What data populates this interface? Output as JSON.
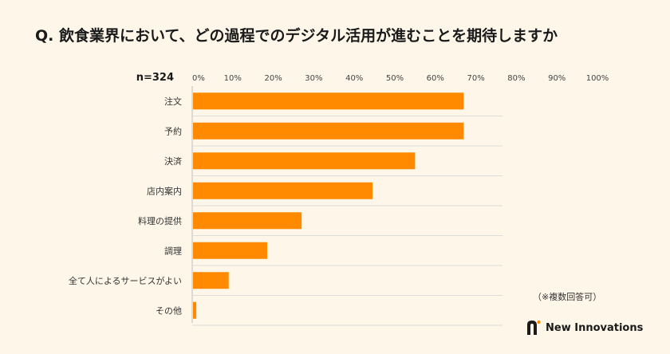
{
  "title": "Q. 飲食業界において、どの過程でのデジタル活用が進むことを期待しますか",
  "note": "（※複数回答可）",
  "brand": {
    "name": "New Innovations"
  },
  "colors": {
    "bar": "#FF8A00",
    "background": "#FDF6E9",
    "grid": "#D9D9D9"
  },
  "chart_data": {
    "type": "bar",
    "orientation": "horizontal",
    "sample_label": "n=324",
    "categories": [
      "注文",
      "予約",
      "決済",
      "店内案内",
      "料理の提供",
      "調理",
      "全て人によるサービスがよい",
      "その他"
    ],
    "values": [
      67.0,
      67.0,
      55.0,
      44.5,
      27.0,
      18.5,
      9.0,
      1.0
    ],
    "x_ticks": [
      "0%",
      "10%",
      "20%",
      "30%",
      "40%",
      "50%",
      "60%",
      "70%",
      "80%",
      "90%",
      "100%"
    ],
    "xlim": [
      0,
      100
    ],
    "grid": true,
    "title": "",
    "xlabel": "",
    "ylabel": ""
  }
}
